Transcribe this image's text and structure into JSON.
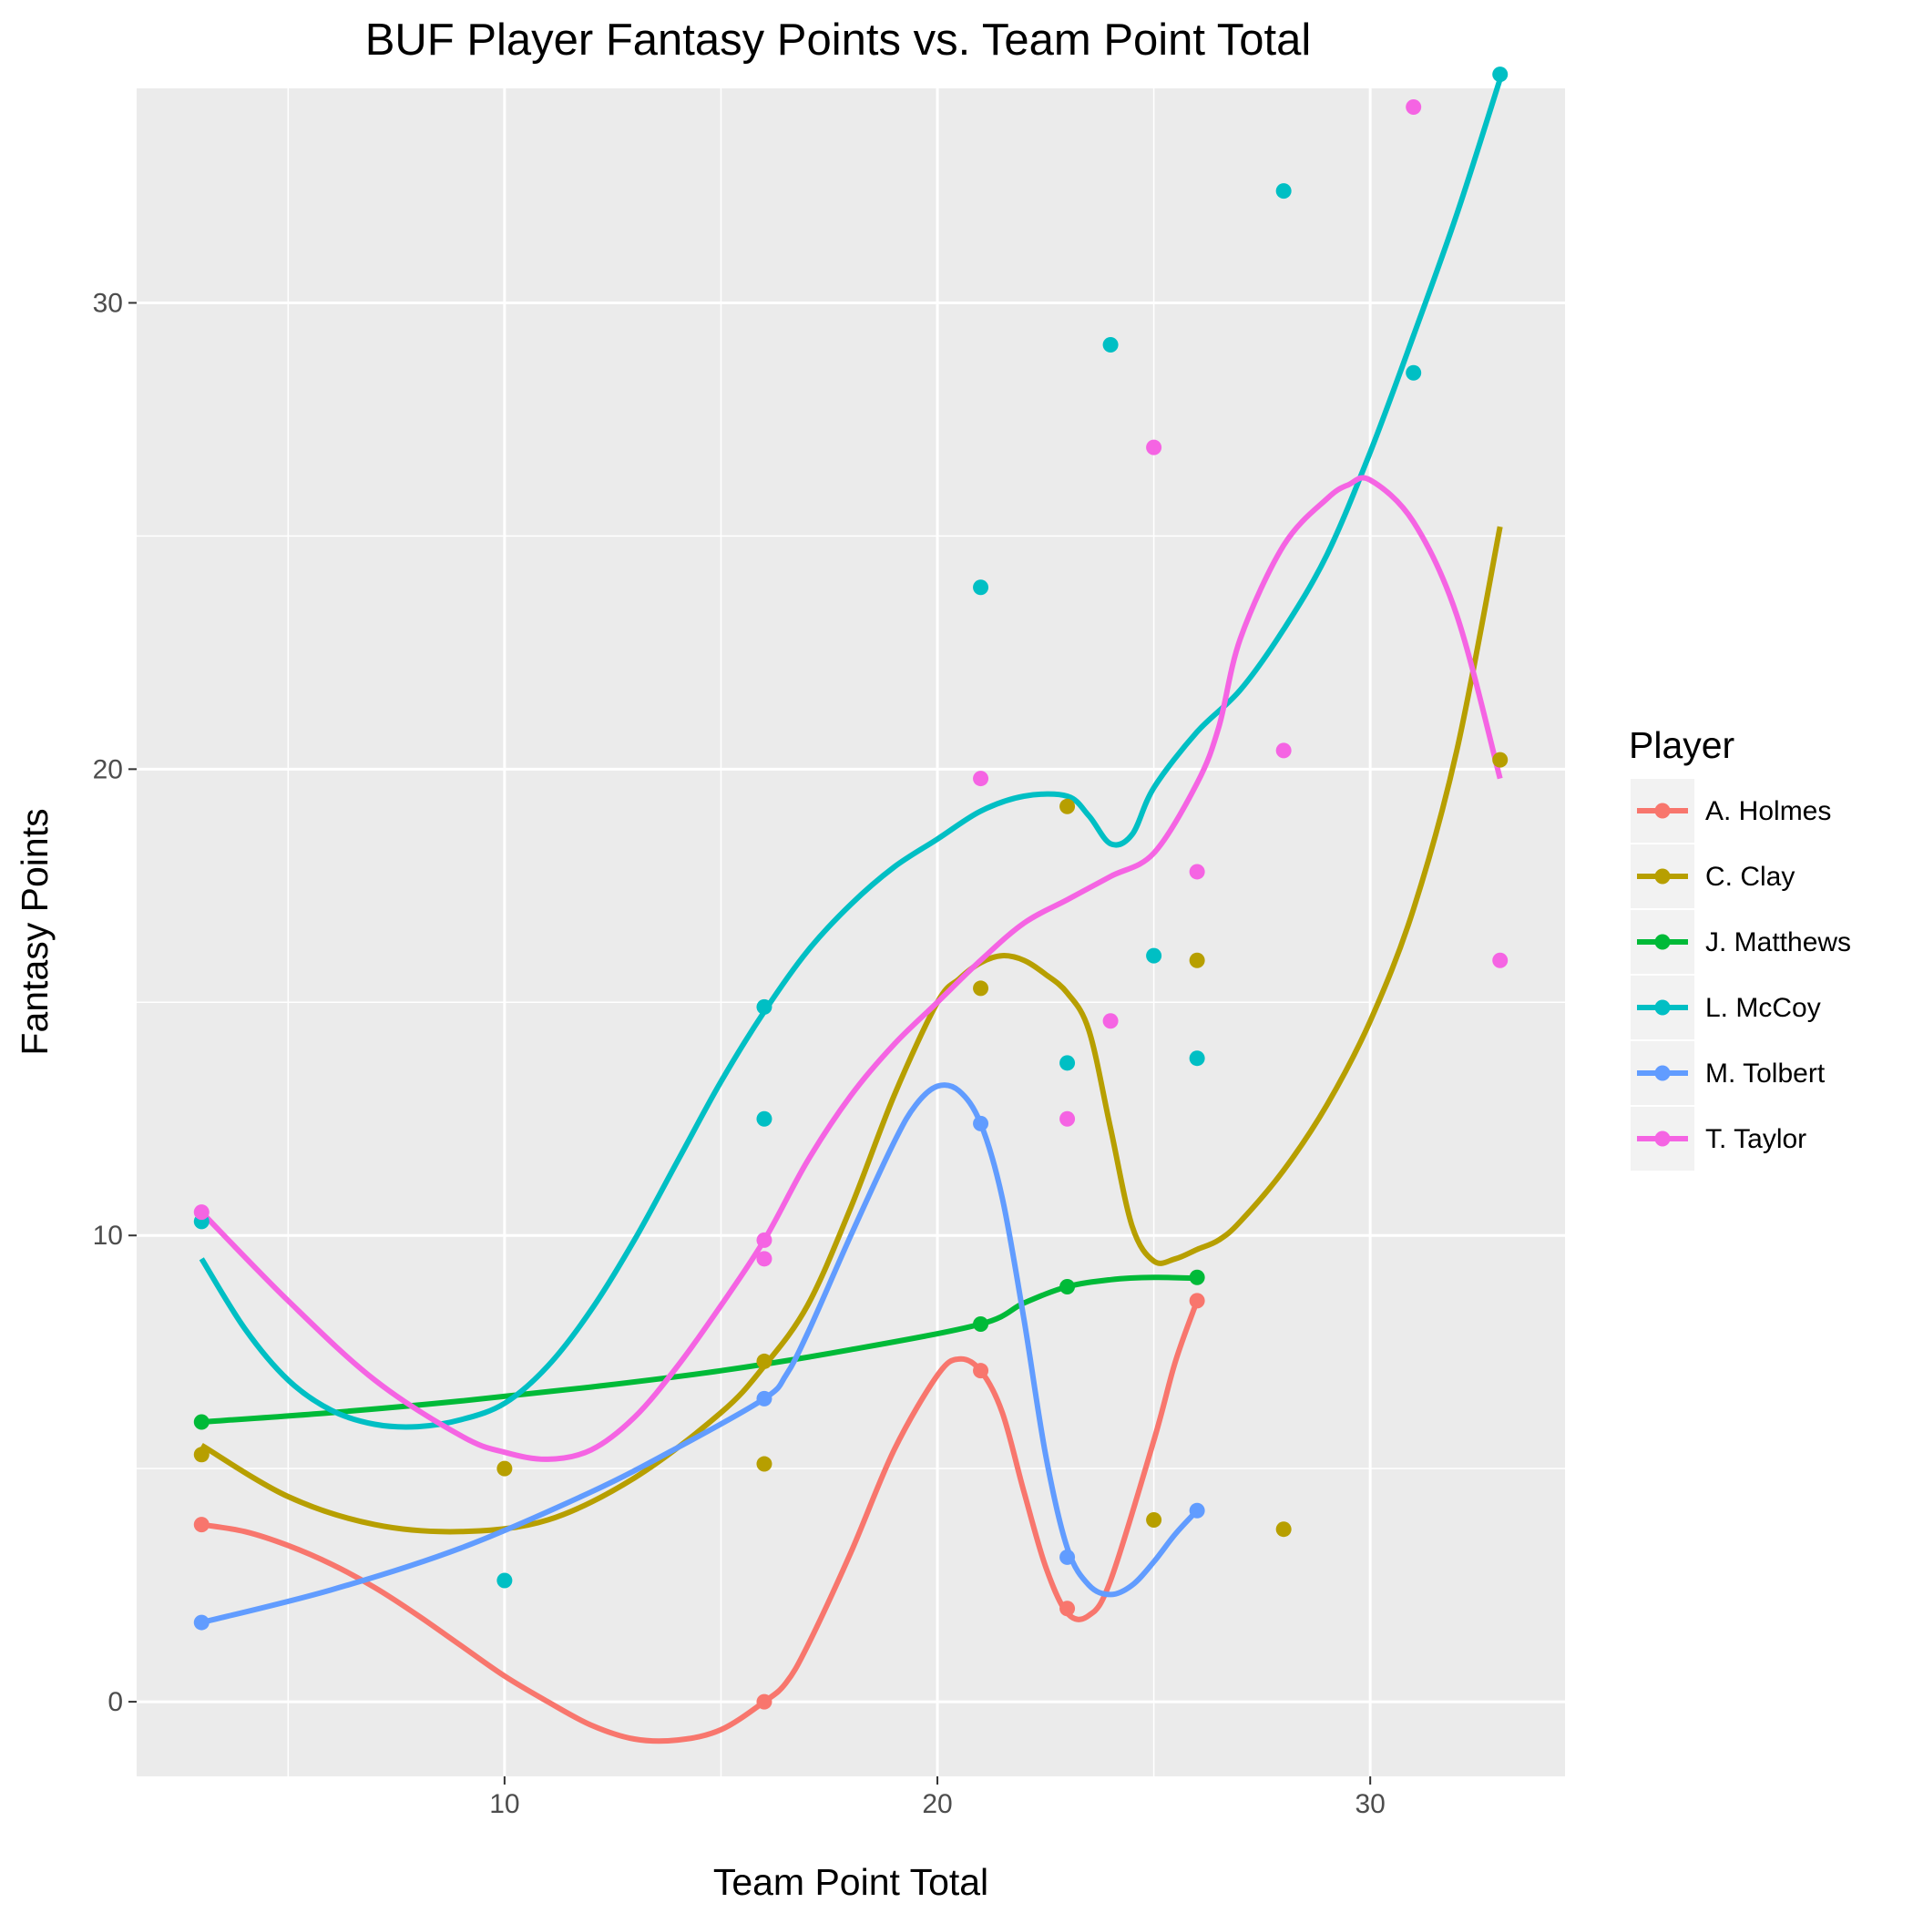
{
  "chart_data": {
    "type": "scatter",
    "title": "BUF Player Fantasy Points vs. Team Point Total",
    "xlabel": "Team Point Total",
    "ylabel": "Fantasy Points",
    "xlim": [
      1.5,
      34.5
    ],
    "ylim": [
      -1.6,
      34.6
    ],
    "xticks": [
      10,
      20,
      30
    ],
    "yticks": [
      0,
      10,
      20,
      30
    ],
    "x_minor": [
      5,
      15,
      25
    ],
    "y_minor": [
      5,
      15,
      25
    ],
    "grid": true,
    "legend": {
      "title": "Player",
      "position": "right"
    },
    "series": [
      {
        "name": "A. Holmes",
        "color": "#F8766D",
        "points": [
          [
            3,
            3.8
          ],
          [
            16,
            0
          ],
          [
            21,
            7.1
          ],
          [
            23,
            2.0
          ],
          [
            26,
            8.6
          ]
        ],
        "smooth": [
          [
            3,
            3.8
          ],
          [
            4,
            3.65
          ],
          [
            5,
            3.35
          ],
          [
            6,
            2.95
          ],
          [
            7,
            2.45
          ],
          [
            8,
            1.85
          ],
          [
            9,
            1.2
          ],
          [
            10,
            0.55
          ],
          [
            11,
            0
          ],
          [
            12,
            -0.5
          ],
          [
            13,
            -0.8
          ],
          [
            14,
            -0.82
          ],
          [
            15,
            -0.6
          ],
          [
            16,
            0
          ],
          [
            16.5,
            0.4
          ],
          [
            17,
            1.2
          ],
          [
            18,
            3.2
          ],
          [
            19,
            5.4
          ],
          [
            20,
            7.0
          ],
          [
            20.5,
            7.35
          ],
          [
            21,
            7.1
          ],
          [
            21.5,
            6.2
          ],
          [
            22,
            4.5
          ],
          [
            22.5,
            2.9
          ],
          [
            23,
            1.9
          ],
          [
            23.5,
            1.85
          ],
          [
            24,
            2.6
          ],
          [
            25,
            5.6
          ],
          [
            25.5,
            7.3
          ],
          [
            26,
            8.6
          ]
        ]
      },
      {
        "name": "C. Clay",
        "color": "#B79F00",
        "points": [
          [
            3,
            5.3
          ],
          [
            10,
            5.0
          ],
          [
            16,
            7.3
          ],
          [
            16,
            5.1
          ],
          [
            21,
            15.3
          ],
          [
            23,
            19.2
          ],
          [
            25,
            3.9
          ],
          [
            26,
            15.9
          ],
          [
            28,
            3.7
          ],
          [
            33,
            20.2
          ]
        ],
        "smooth": [
          [
            3,
            5.5
          ],
          [
            5,
            4.4
          ],
          [
            7,
            3.8
          ],
          [
            9,
            3.65
          ],
          [
            11,
            3.9
          ],
          [
            13,
            4.8
          ],
          [
            15,
            6.2
          ],
          [
            16,
            7.2
          ],
          [
            17,
            8.5
          ],
          [
            18,
            10.6
          ],
          [
            19,
            13.0
          ],
          [
            20,
            15.0
          ],
          [
            20.5,
            15.5
          ],
          [
            21,
            15.85
          ],
          [
            21.5,
            16.0
          ],
          [
            22,
            15.9
          ],
          [
            22.5,
            15.6
          ],
          [
            23,
            15.2
          ],
          [
            23.5,
            14.4
          ],
          [
            24,
            12.3
          ],
          [
            24.5,
            10.2
          ],
          [
            25,
            9.45
          ],
          [
            25.5,
            9.5
          ],
          [
            26,
            9.7
          ],
          [
            26.5,
            9.9
          ],
          [
            27,
            10.3
          ],
          [
            28,
            11.4
          ],
          [
            29,
            12.8
          ],
          [
            30,
            14.6
          ],
          [
            31,
            17.0
          ],
          [
            32,
            20.4
          ],
          [
            33,
            25.2
          ]
        ]
      },
      {
        "name": "J. Matthews",
        "color": "#00BA38",
        "points": [
          [
            3,
            6.0
          ],
          [
            21,
            8.1
          ],
          [
            23,
            8.9
          ],
          [
            26,
            9.1
          ]
        ],
        "smooth": [
          [
            3,
            6.0
          ],
          [
            6,
            6.2
          ],
          [
            9,
            6.45
          ],
          [
            12,
            6.75
          ],
          [
            15,
            7.1
          ],
          [
            18,
            7.55
          ],
          [
            21,
            8.1
          ],
          [
            22,
            8.55
          ],
          [
            23,
            8.9
          ],
          [
            24,
            9.05
          ],
          [
            25,
            9.1
          ],
          [
            26,
            9.08
          ]
        ]
      },
      {
        "name": "L. McCoy",
        "color": "#00BFC4",
        "points": [
          [
            3,
            10.3
          ],
          [
            10,
            2.6
          ],
          [
            16,
            14.9
          ],
          [
            16,
            12.5
          ],
          [
            21,
            23.9
          ],
          [
            23,
            13.7
          ],
          [
            24,
            29.1
          ],
          [
            25,
            16.0
          ],
          [
            26,
            13.8
          ],
          [
            28,
            32.4
          ],
          [
            31,
            28.5
          ],
          [
            33,
            34.9
          ]
        ],
        "smooth": [
          [
            3,
            9.5
          ],
          [
            4,
            8.0
          ],
          [
            5,
            6.9
          ],
          [
            6,
            6.25
          ],
          [
            7,
            5.95
          ],
          [
            8,
            5.9
          ],
          [
            9,
            6.05
          ],
          [
            10,
            6.4
          ],
          [
            11,
            7.2
          ],
          [
            12,
            8.4
          ],
          [
            13,
            9.9
          ],
          [
            14,
            11.6
          ],
          [
            15,
            13.3
          ],
          [
            16,
            14.8
          ],
          [
            17,
            16.1
          ],
          [
            18,
            17.1
          ],
          [
            19,
            17.9
          ],
          [
            20,
            18.5
          ],
          [
            21,
            19.1
          ],
          [
            22,
            19.42
          ],
          [
            23,
            19.42
          ],
          [
            23.5,
            19.0
          ],
          [
            24,
            18.4
          ],
          [
            24.5,
            18.6
          ],
          [
            25,
            19.6
          ],
          [
            26,
            20.8
          ],
          [
            27,
            21.7
          ],
          [
            28,
            23.0
          ],
          [
            29,
            24.6
          ],
          [
            30,
            26.8
          ],
          [
            31,
            29.3
          ],
          [
            32,
            31.9
          ],
          [
            33,
            34.8
          ]
        ]
      },
      {
        "name": "M. Tolbert",
        "color": "#619CFF",
        "points": [
          [
            3,
            1.7
          ],
          [
            16,
            6.5
          ],
          [
            21,
            12.4
          ],
          [
            23,
            3.1
          ],
          [
            26,
            4.1
          ]
        ],
        "smooth": [
          [
            3,
            1.7
          ],
          [
            6,
            2.4
          ],
          [
            9,
            3.3
          ],
          [
            12,
            4.5
          ],
          [
            14,
            5.45
          ],
          [
            16,
            6.5
          ],
          [
            16.5,
            7.0
          ],
          [
            17,
            7.9
          ],
          [
            18,
            10.0
          ],
          [
            19,
            12.0
          ],
          [
            19.5,
            12.8
          ],
          [
            20,
            13.2
          ],
          [
            20.5,
            13.1
          ],
          [
            21,
            12.4
          ],
          [
            21.5,
            10.8
          ],
          [
            22,
            8.2
          ],
          [
            22.5,
            5.3
          ],
          [
            23,
            3.3
          ],
          [
            23.5,
            2.5
          ],
          [
            24,
            2.3
          ],
          [
            24.5,
            2.5
          ],
          [
            25,
            3.0
          ],
          [
            25.5,
            3.6
          ],
          [
            26,
            4.1
          ]
        ]
      },
      {
        "name": "T. Taylor",
        "color": "#F564E3",
        "points": [
          [
            3,
            10.5
          ],
          [
            16,
            9.9
          ],
          [
            16,
            9.5
          ],
          [
            21,
            19.8
          ],
          [
            23,
            12.5
          ],
          [
            24,
            14.6
          ],
          [
            25,
            26.9
          ],
          [
            26,
            17.8
          ],
          [
            28,
            20.4
          ],
          [
            31,
            34.2
          ],
          [
            33,
            15.9
          ]
        ],
        "smooth": [
          [
            3,
            10.5
          ],
          [
            5,
            8.6
          ],
          [
            7,
            6.9
          ],
          [
            9,
            5.7
          ],
          [
            10,
            5.35
          ],
          [
            11,
            5.2
          ],
          [
            12,
            5.4
          ],
          [
            13,
            6.1
          ],
          [
            14,
            7.2
          ],
          [
            15,
            8.5
          ],
          [
            16,
            9.9
          ],
          [
            17,
            11.6
          ],
          [
            18,
            13.0
          ],
          [
            19,
            14.1
          ],
          [
            20,
            15.0
          ],
          [
            21,
            15.9
          ],
          [
            22,
            16.7
          ],
          [
            23,
            17.2
          ],
          [
            24,
            17.7
          ],
          [
            25,
            18.2
          ],
          [
            26,
            19.7
          ],
          [
            26.5,
            20.9
          ],
          [
            27,
            22.8
          ],
          [
            28,
            24.8
          ],
          [
            29,
            25.8
          ],
          [
            29.5,
            26.1
          ],
          [
            30,
            26.2
          ],
          [
            31,
            25.3
          ],
          [
            32,
            23.3
          ],
          [
            33,
            19.8
          ]
        ]
      }
    ]
  }
}
